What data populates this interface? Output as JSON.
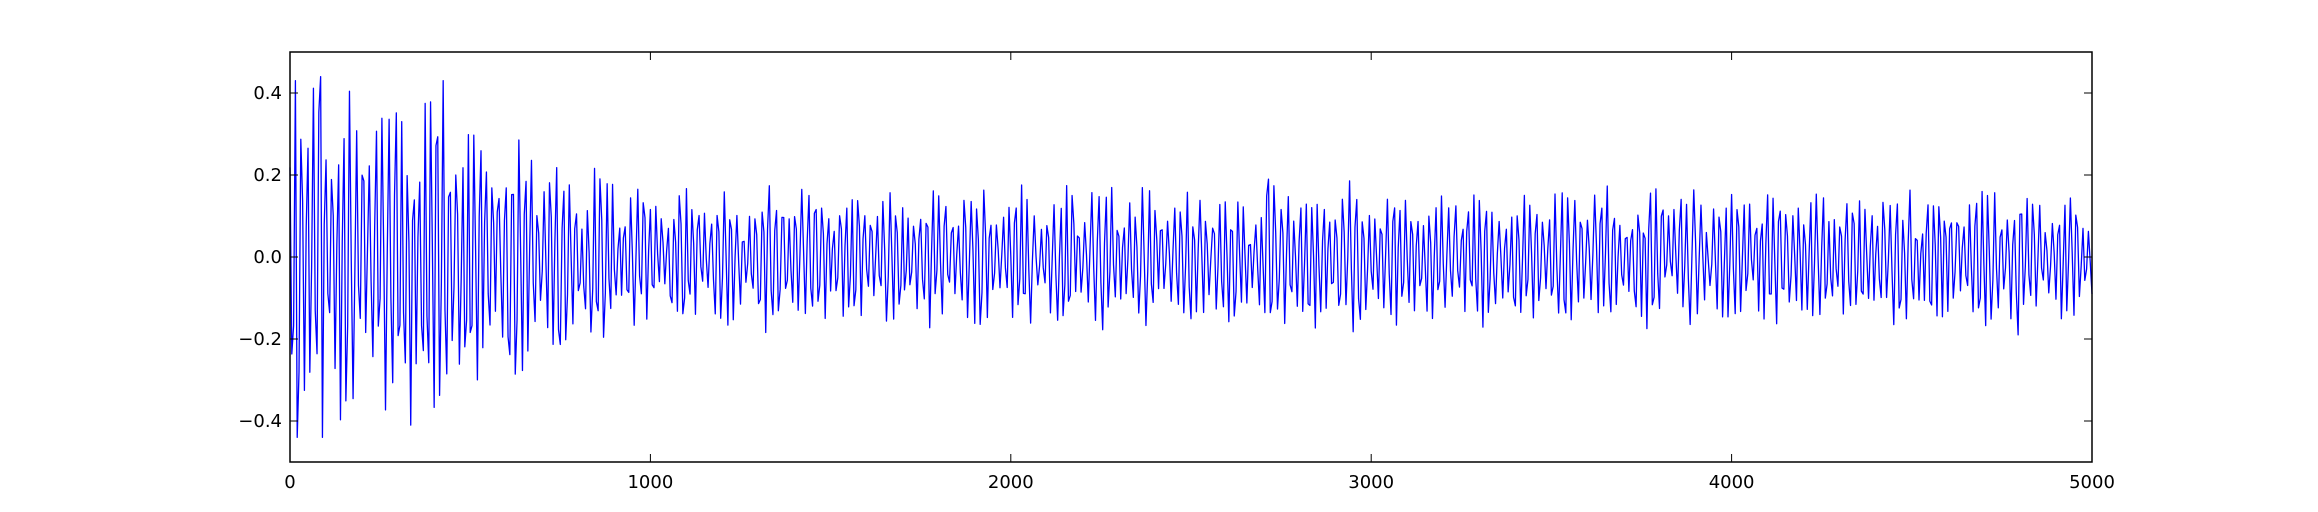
{
  "chart_data": {
    "type": "line",
    "title": "",
    "xlabel": "",
    "ylabel": "",
    "xlim": [
      0,
      5000
    ],
    "ylim": [
      -0.5,
      0.5
    ],
    "grid": false,
    "legend": "none",
    "x_ticks": [
      0,
      1000,
      2000,
      3000,
      4000,
      5000
    ],
    "x_tick_labels": [
      "0",
      "1000",
      "2000",
      "3000",
      "4000",
      "5000"
    ],
    "y_ticks": [
      -0.4,
      -0.2,
      0.0,
      0.2,
      0.4
    ],
    "y_tick_labels": [
      "−0.4",
      "−0.2",
      "0.0",
      "0.2",
      "0.4"
    ],
    "series": [
      {
        "color": "#0000ff",
        "sample_step": 5,
        "envelope": {
          "x": [
            0,
            100,
            200,
            300,
            400,
            500,
            600,
            700,
            800,
            900,
            1000,
            1200,
            1400,
            1600,
            1800,
            2000,
            2200,
            2400,
            2600,
            2800,
            3000,
            3200,
            3400,
            3600,
            3800,
            4000,
            4200,
            4400,
            4600,
            4800,
            5000
          ],
          "amplitude": [
            0.4,
            0.4,
            0.38,
            0.38,
            0.4,
            0.32,
            0.3,
            0.26,
            0.22,
            0.2,
            0.17,
            0.17,
            0.17,
            0.16,
            0.16,
            0.16,
            0.17,
            0.16,
            0.16,
            0.18,
            0.17,
            0.16,
            0.16,
            0.16,
            0.16,
            0.16,
            0.16,
            0.16,
            0.17,
            0.17,
            0.15
          ]
        },
        "peaks": [
          {
            "x": 15,
            "y": 0.43
          },
          {
            "x": 90,
            "y": 0.44
          },
          {
            "x": 430,
            "y": 0.43
          },
          {
            "x": 20,
            "y": -0.44
          },
          {
            "x": 90,
            "y": -0.44
          },
          {
            "x": 330,
            "y": -0.41
          },
          {
            "x": 2720,
            "y": 0.19
          },
          {
            "x": 4800,
            "y": -0.19
          }
        ]
      }
    ]
  }
}
